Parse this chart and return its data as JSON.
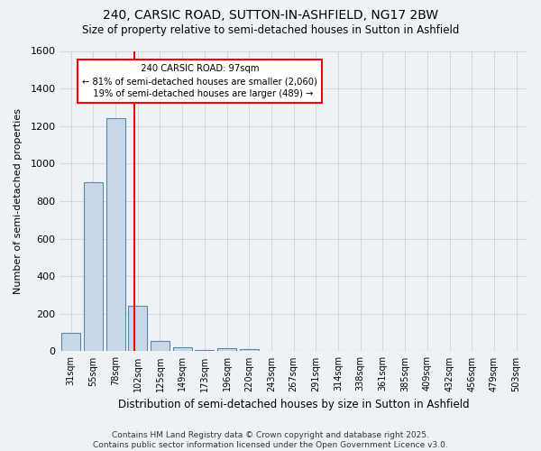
{
  "title1": "240, CARSIC ROAD, SUTTON-IN-ASHFIELD, NG17 2BW",
  "title2": "Size of property relative to semi-detached houses in Sutton in Ashfield",
  "xlabel": "Distribution of semi-detached houses by size in Sutton in Ashfield",
  "ylabel": "Number of semi-detached properties",
  "categories": [
    "31sqm",
    "55sqm",
    "78sqm",
    "102sqm",
    "125sqm",
    "149sqm",
    "173sqm",
    "196sqm",
    "220sqm",
    "243sqm",
    "267sqm",
    "291sqm",
    "314sqm",
    "338sqm",
    "361sqm",
    "385sqm",
    "409sqm",
    "432sqm",
    "456sqm",
    "479sqm",
    "503sqm"
  ],
  "bar_values": [
    100,
    900,
    1240,
    240,
    55,
    20,
    5,
    15,
    10,
    0,
    0,
    0,
    0,
    0,
    0,
    0,
    0,
    0,
    0,
    0,
    0
  ],
  "bar_color": "#c8d8e8",
  "bar_edge_color": "#5588aa",
  "red_line_x": 2.83,
  "property_size": "97sqm",
  "property_address": "240 CARSIC ROAD",
  "pct_smaller": 81,
  "count_smaller": 2060,
  "pct_larger": 19,
  "count_larger": 489,
  "ylim": [
    0,
    1600
  ],
  "yticks": [
    0,
    200,
    400,
    600,
    800,
    1000,
    1200,
    1400,
    1600
  ],
  "background_color": "#eef2f7",
  "grid_color": "#cccccc",
  "footer": "Contains HM Land Registry data © Crown copyright and database right 2025.\nContains public sector information licensed under the Open Government Licence v3.0."
}
